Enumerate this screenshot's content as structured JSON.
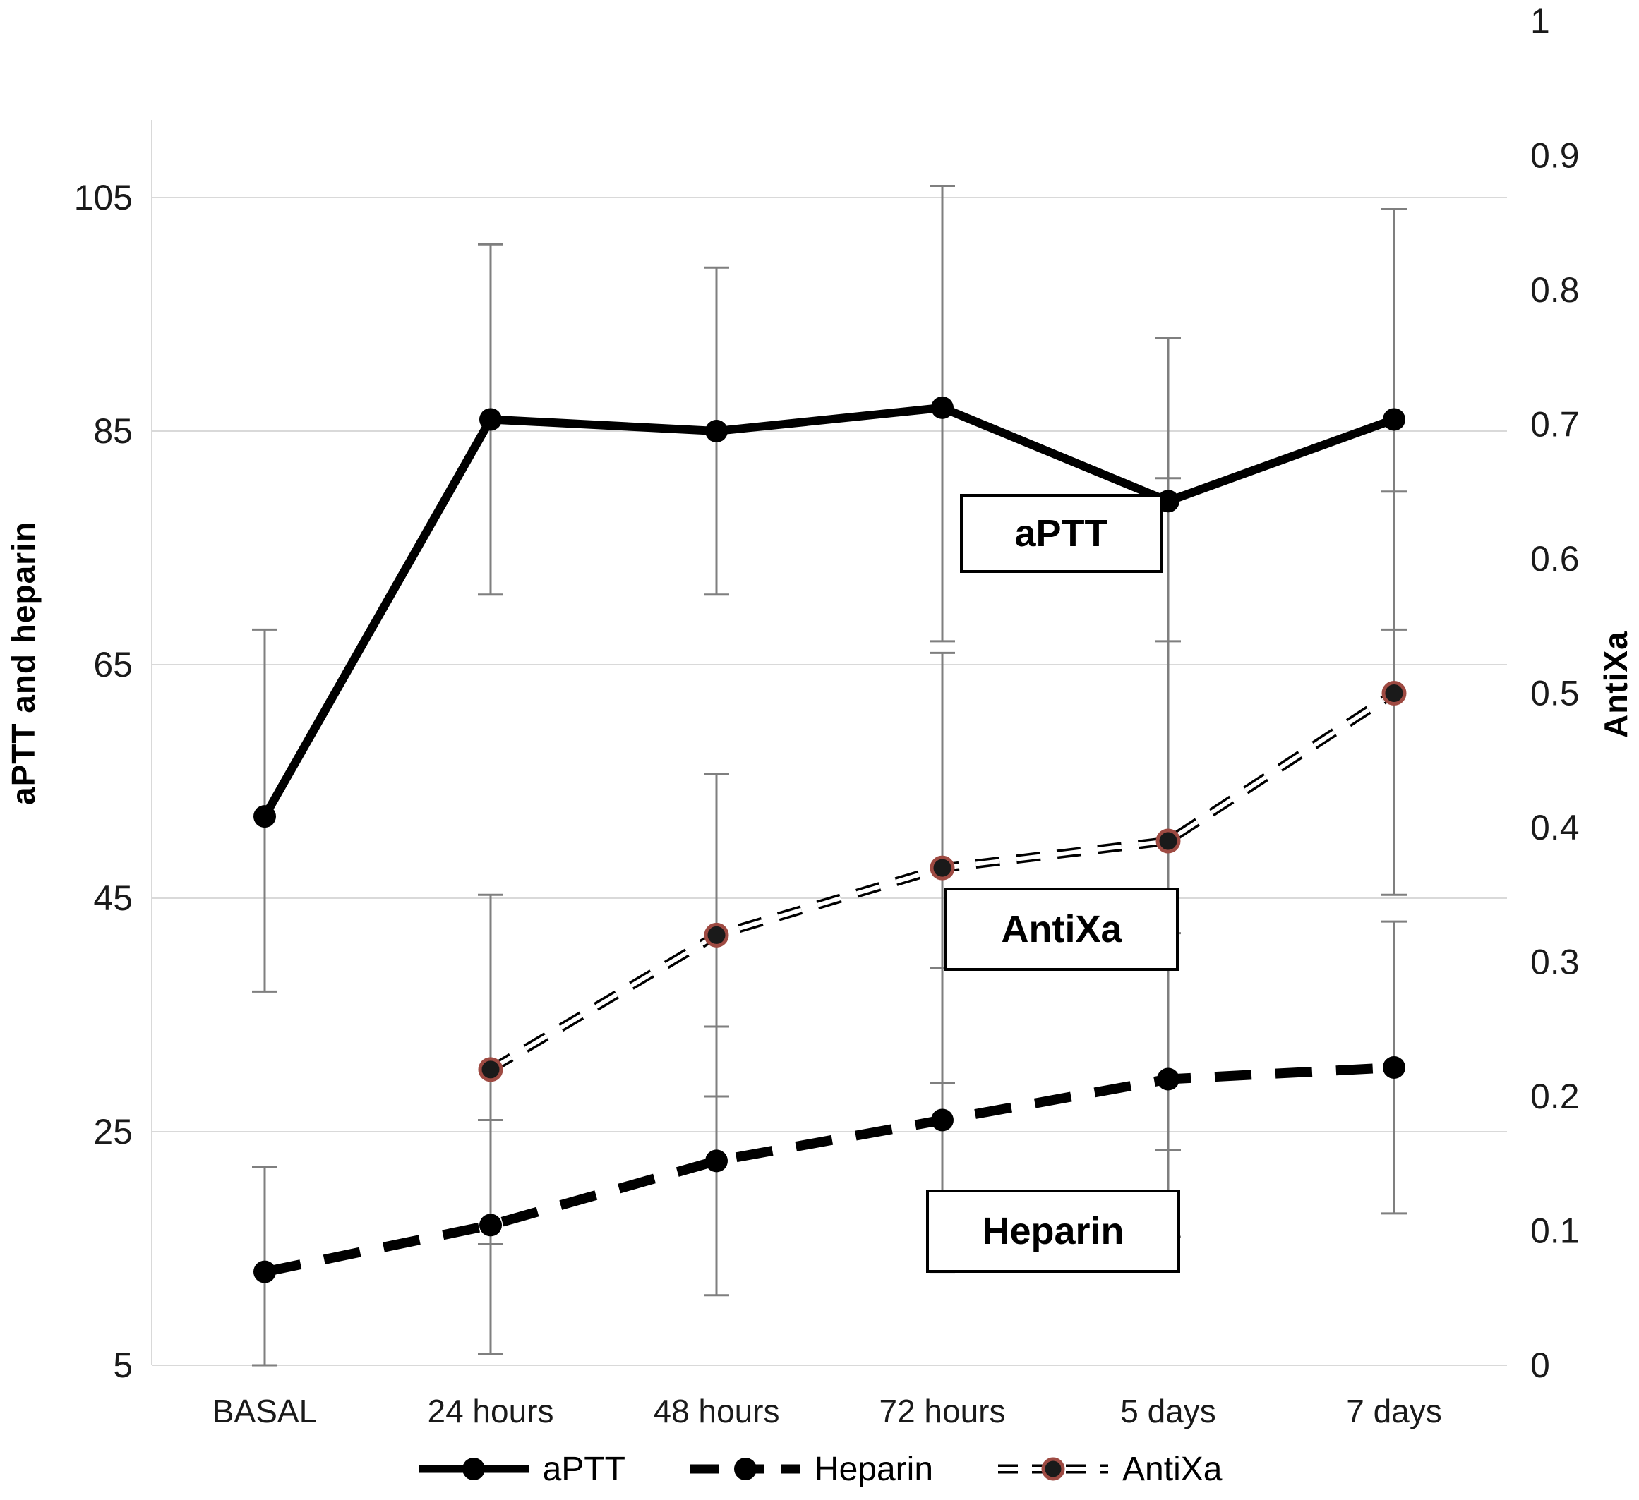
{
  "chart_data": {
    "type": "line",
    "title": "",
    "categories": [
      "BASAL",
      "24 hours",
      "48 hours",
      "72 hours",
      "5 days",
      "7 days"
    ],
    "ylabel_left": "aPTT and heparin",
    "ylabel_right": "AntiXa",
    "left_axis": {
      "min": 5,
      "max": 105,
      "ticks": [
        105,
        85,
        65,
        45,
        25,
        5
      ]
    },
    "right_axis": {
      "min": 0,
      "max": 1,
      "ticks": [
        1,
        0.9,
        0.8,
        0.7,
        0.6,
        0.5,
        0.4,
        0.3,
        0.2,
        0.1,
        0
      ]
    },
    "grid": true,
    "legend_position": "bottom",
    "series": [
      {
        "name": "aPTT",
        "axis": "left",
        "line_style": "solid",
        "color": "#000000",
        "values": [
          52,
          86,
          85,
          87,
          79,
          86
        ],
        "err_lo": [
          37,
          71,
          71,
          67,
          67,
          68
        ],
        "err_hi": [
          68,
          101,
          99,
          106,
          93,
          104
        ]
      },
      {
        "name": "Heparin",
        "axis": "left",
        "line_style": "dashed",
        "color": "#000000",
        "values": [
          13,
          17,
          22.5,
          26,
          29.5,
          30.5
        ],
        "err_lo": [
          5,
          6,
          11,
          13,
          16,
          18
        ],
        "err_hi": [
          22,
          26,
          34,
          39,
          42,
          43
        ]
      },
      {
        "name": "AntiXa",
        "axis": "right",
        "line_style": "dashed-outline",
        "color": "#000000",
        "marker_ring": "#9e4a42",
        "values": [
          null,
          0.22,
          0.32,
          0.37,
          0.39,
          0.5
        ],
        "err_lo": [
          null,
          0.09,
          0.2,
          0.21,
          0.16,
          0.35
        ],
        "err_hi": [
          null,
          0.35,
          0.44,
          0.53,
          0.66,
          0.65
        ]
      }
    ],
    "annotations": [
      {
        "label": "aPTT"
      },
      {
        "label": "AntiXa"
      },
      {
        "label": "Heparin"
      }
    ]
  },
  "legend": {
    "items": [
      {
        "label": "aPTT"
      },
      {
        "label": "Heparin"
      },
      {
        "label": "AntiXa"
      }
    ]
  },
  "colors": {
    "grid": "#d9d9d9",
    "axis_line": "#d9d9d9",
    "tick_text": "#1a1a1a",
    "error_bar": "#7f7f7f",
    "series": "#000000",
    "antixa_ring": "#9e4a42",
    "background": "#ffffff"
  }
}
